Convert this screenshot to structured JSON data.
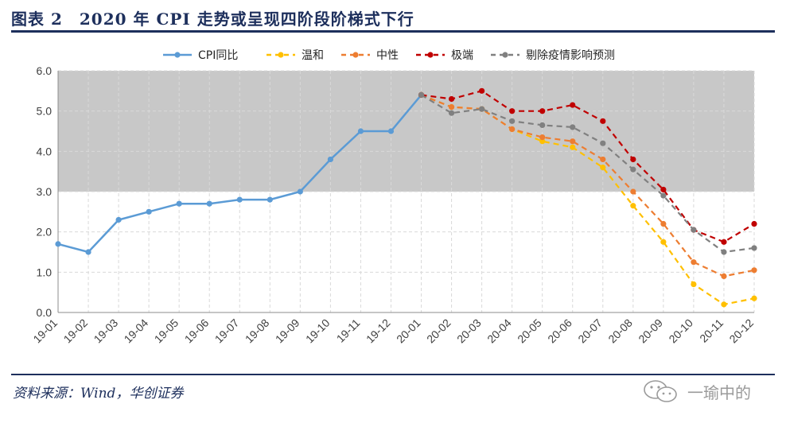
{
  "header": {
    "title": "图表 2　2020 年 CPI 走势或呈现四阶段阶梯式下行"
  },
  "footer": {
    "source": "资料来源：Wind，华创证券"
  },
  "watermark": {
    "text": "一瑜中的",
    "icon": "wechat-icon"
  },
  "chart_data": {
    "type": "line",
    "categories": [
      "19-01",
      "19-02",
      "19-03",
      "19-04",
      "19-05",
      "19-06",
      "19-07",
      "19-08",
      "19-09",
      "19-10",
      "19-11",
      "19-12",
      "20-01",
      "20-02",
      "20-03",
      "20-04",
      "20-05",
      "20-06",
      "20-07",
      "20-08",
      "20-09",
      "20-10",
      "20-11",
      "20-12"
    ],
    "ylim": [
      0,
      6
    ],
    "yticks": [
      "0.0",
      "1.0",
      "2.0",
      "3.0",
      "4.0",
      "5.0",
      "6.0"
    ],
    "shaded_band": [
      3.0,
      6.0
    ],
    "legend_position": "top",
    "grid": true,
    "series": [
      {
        "name": "CPI同比",
        "color": "#5b9bd5",
        "dash": "solid",
        "values": [
          1.7,
          1.5,
          2.3,
          2.5,
          2.7,
          2.7,
          2.8,
          2.8,
          3.0,
          3.8,
          4.5,
          4.5,
          5.4,
          null,
          null,
          null,
          null,
          null,
          null,
          null,
          null,
          null,
          null,
          null
        ]
      },
      {
        "name": "温和",
        "color": "#ffc000",
        "dash": "dashed",
        "values": [
          null,
          null,
          null,
          null,
          null,
          null,
          null,
          null,
          null,
          null,
          null,
          null,
          5.4,
          5.1,
          5.05,
          4.55,
          4.25,
          4.1,
          3.6,
          2.65,
          1.75,
          0.7,
          0.2,
          0.35
        ]
      },
      {
        "name": "中性",
        "color": "#ed7d31",
        "dash": "dashed",
        "values": [
          null,
          null,
          null,
          null,
          null,
          null,
          null,
          null,
          null,
          null,
          null,
          null,
          5.4,
          5.1,
          5.05,
          4.55,
          4.35,
          4.25,
          3.8,
          3.0,
          2.2,
          1.25,
          0.9,
          1.05
        ]
      },
      {
        "name": "极端",
        "color": "#c00000",
        "dash": "dashed",
        "values": [
          null,
          null,
          null,
          null,
          null,
          null,
          null,
          null,
          null,
          null,
          null,
          null,
          5.4,
          5.3,
          5.5,
          5.0,
          5.0,
          5.15,
          4.75,
          3.8,
          3.05,
          2.05,
          1.75,
          2.2
        ]
      },
      {
        "name": "剔除疫情影响预测",
        "color": "#808080",
        "dash": "dashed",
        "values": [
          null,
          null,
          null,
          null,
          null,
          null,
          null,
          null,
          null,
          null,
          null,
          null,
          5.4,
          4.95,
          5.05,
          4.75,
          4.65,
          4.6,
          4.2,
          3.55,
          2.9,
          2.05,
          1.5,
          1.6
        ]
      }
    ]
  }
}
